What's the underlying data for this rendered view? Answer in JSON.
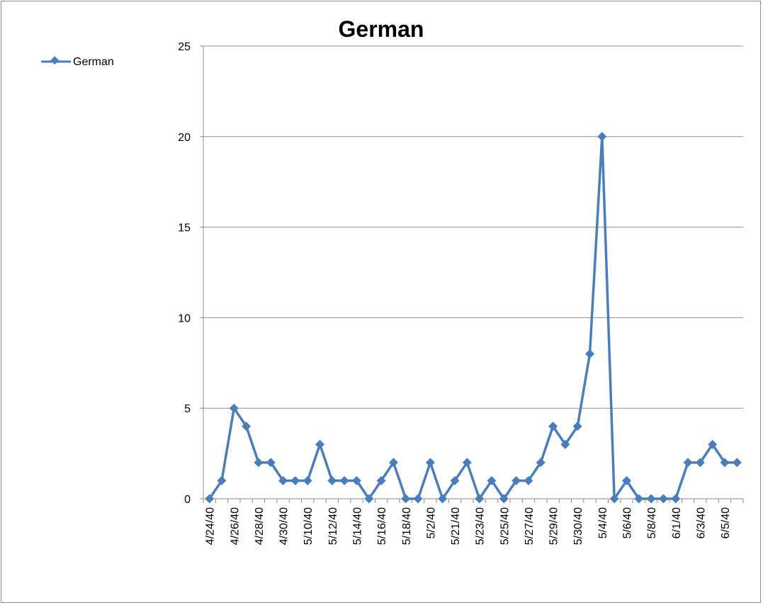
{
  "chart_data": {
    "type": "line",
    "title": "German",
    "xlabel": "",
    "ylabel": "",
    "ylim": [
      0,
      25
    ],
    "yticks": [
      0,
      5,
      10,
      15,
      20,
      25
    ],
    "grid": "horizontal",
    "legend_placement": "top-left",
    "x_tick_labels": [
      "4/24/40",
      "4/26/40",
      "4/28/40",
      "4/30/40",
      "5/10/40",
      "5/12/40",
      "5/14/40",
      "5/16/40",
      "5/18/40",
      "5/2/40",
      "5/21/40",
      "5/23/40",
      "5/25/40",
      "5/27/40",
      "5/29/40",
      "5/30/40",
      "5/4/40",
      "5/6/40",
      "5/8/40",
      "6/1/40",
      "6/3/40",
      "6/5/40"
    ],
    "series": [
      {
        "name": "German",
        "color": "#4a7ebb",
        "values": [
          0,
          1,
          5,
          4,
          2,
          2,
          1,
          1,
          1,
          3,
          1,
          1,
          1,
          0,
          1,
          2,
          0,
          0,
          2,
          0,
          1,
          2,
          0,
          1,
          0,
          1,
          1,
          2,
          4,
          3,
          4,
          8,
          20,
          0,
          1,
          0,
          0,
          0,
          0,
          2,
          2,
          3,
          2,
          2
        ]
      }
    ]
  }
}
